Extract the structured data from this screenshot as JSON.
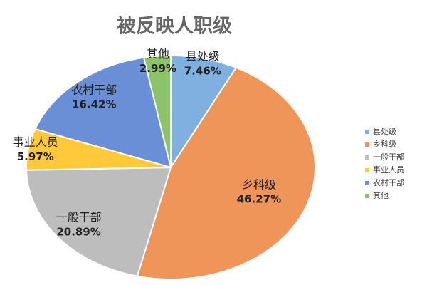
{
  "chart_data": {
    "type": "pie",
    "title": "被反映人职级",
    "categories": [
      "县处级",
      "乡科级",
      "一般干部",
      "事业人员",
      "农村干部",
      "其他"
    ],
    "values": [
      7.46,
      46.27,
      20.89,
      5.97,
      16.42,
      2.99
    ],
    "value_labels": [
      "7.46%",
      "46.27%",
      "20.89%",
      "5.97%",
      "16.42%",
      "2.99%"
    ],
    "colors": [
      "#7fb0e0",
      "#f0955a",
      "#bdbdbd",
      "#ffc93a",
      "#6a8fd6",
      "#8cc26a"
    ],
    "legend": "right"
  }
}
